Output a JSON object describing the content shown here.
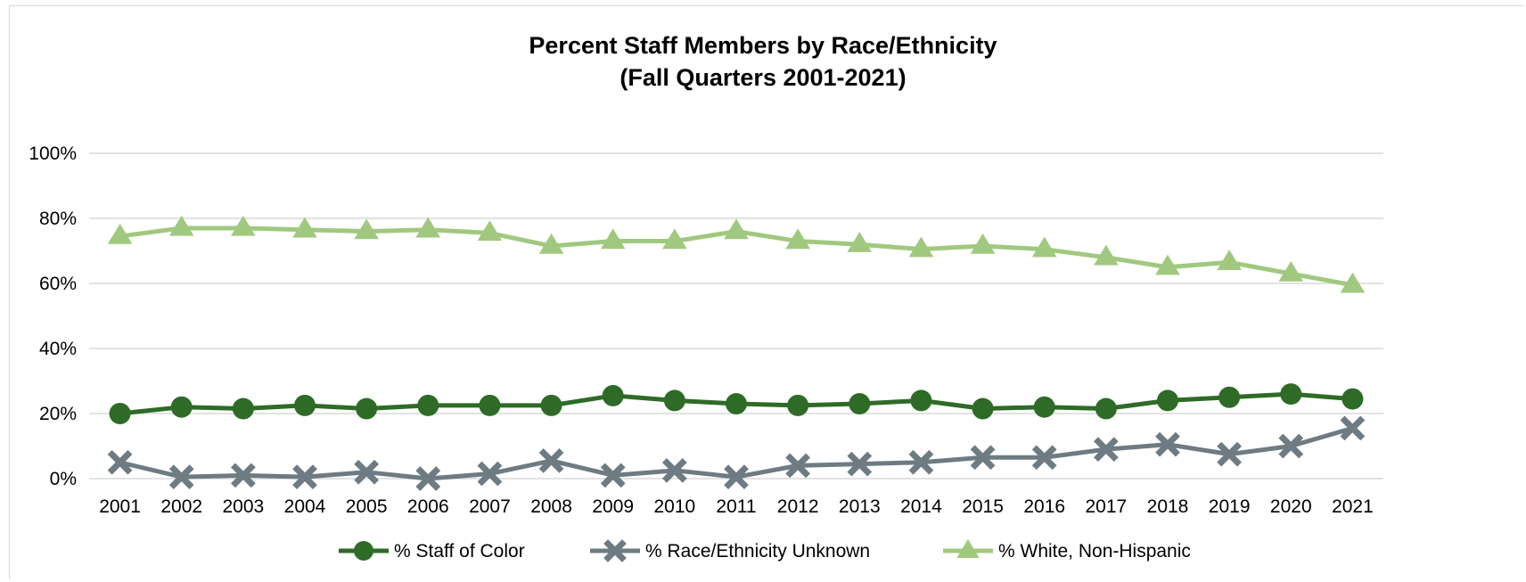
{
  "chart_data": {
    "type": "line",
    "title": [
      "Percent Staff Members by Race/Ethnicity",
      "(Fall Quarters 2001-2021)"
    ],
    "categories": [
      "2001",
      "2002",
      "2003",
      "2004",
      "2005",
      "2006",
      "2007",
      "2008",
      "2009",
      "2010",
      "2011",
      "2012",
      "2013",
      "2014",
      "2015",
      "2016",
      "2017",
      "2018",
      "2019",
      "2020",
      "2021"
    ],
    "ylim": [
      0,
      100
    ],
    "yticks": [
      0,
      20,
      40,
      60,
      80,
      100
    ],
    "ytick_labels": [
      "0%",
      "20%",
      "40%",
      "60%",
      "80%",
      "100%"
    ],
    "grid": true,
    "legend_position": "bottom",
    "series": [
      {
        "name": "% Staff of Color",
        "color": "#2e6b27",
        "marker": "circle",
        "values": [
          20,
          22,
          21.5,
          22.5,
          21.5,
          22.5,
          22.5,
          22.5,
          25.5,
          24,
          23,
          22.5,
          23,
          24,
          21.5,
          22,
          21.5,
          24,
          25,
          26,
          24.5
        ]
      },
      {
        "name": "% Race/Ethnicity Unknown",
        "color": "#6e7b83",
        "marker": "x",
        "values": [
          5,
          0.5,
          1,
          0.5,
          2,
          0,
          1.5,
          5.5,
          1,
          2.5,
          0.5,
          4,
          4.5,
          5,
          6.5,
          6.5,
          9,
          10.5,
          7.5,
          10,
          15.5
        ]
      },
      {
        "name": "% White, Non-Hispanic",
        "color": "#a0c97f",
        "marker": "triangle",
        "values": [
          74.5,
          77,
          77,
          76.5,
          76,
          76.5,
          75.5,
          71.5,
          73,
          73,
          76,
          73,
          72,
          70.5,
          71.5,
          70.5,
          68,
          65,
          66.5,
          63,
          59.5
        ]
      }
    ]
  }
}
